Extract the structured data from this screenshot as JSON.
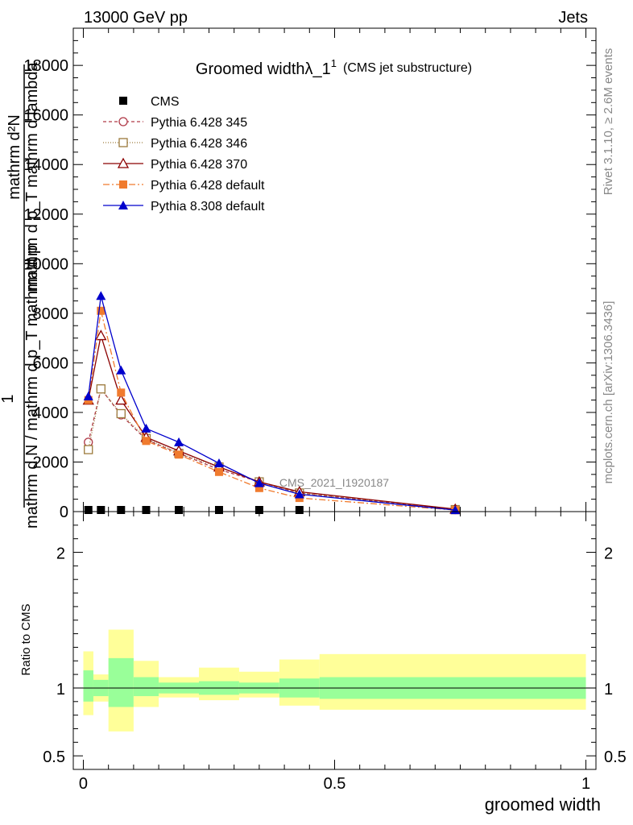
{
  "header": {
    "left": "13000 GeV pp",
    "right": "Jets"
  },
  "side_labels": {
    "rivet": "Rivet 3.1.10, ≥ 2.6M events",
    "mcplots": "mcplots.cern.ch [arXiv:1306.3436]"
  },
  "chart_data": [
    {
      "type": "line",
      "title": "Groomed widthλ_1",
      "title_sup": "1",
      "subtitle": "(CMS jet substructure)",
      "analysis_label": "CMS_2021_I1920187",
      "ylabel_numerator": "mathrm d²N",
      "ylabel_denominator": "mathrm d p_T mathrm d lambda",
      "ylabel_overlay": "mathrm d N / mathrm d p_T mathrm d p",
      "ylabel_prefix": "1",
      "xlim": [
        -0.02,
        1.02
      ],
      "ylim": [
        0,
        19500
      ],
      "yticks": [
        0,
        2000,
        4000,
        6000,
        8000,
        10000,
        12000,
        14000,
        16000,
        18000
      ],
      "ytick_labels": [
        "0",
        "2000",
        "4000",
        "6000",
        "8000",
        "10000",
        "12000",
        "14000",
        "16000",
        "18000"
      ],
      "legend_position": "top-left",
      "series": [
        {
          "name": "CMS",
          "color": "#000000",
          "marker": "square",
          "x": [
            0.01,
            0.035,
            0.075,
            0.125,
            0.19,
            0.27,
            0.35,
            0.43,
            0.74
          ],
          "values": [
            30,
            30,
            25,
            20,
            15,
            10,
            8,
            5,
            2
          ]
        },
        {
          "name": "Pythia 6.428 345",
          "color": "#b03a48",
          "marker": "circle-open",
          "dash": "4,3",
          "x": [
            0.01,
            0.035,
            0.075,
            0.125,
            0.19,
            0.27,
            0.35,
            0.43,
            0.74
          ],
          "values": [
            2800,
            4950,
            3900,
            2900,
            2350,
            1700,
            1200,
            750,
            80
          ]
        },
        {
          "name": "Pythia 6.428 346",
          "color": "#9c7a3c",
          "marker": "square-open",
          "dash": "1,2",
          "x": [
            0.01,
            0.035,
            0.075,
            0.125,
            0.19,
            0.27,
            0.35,
            0.43,
            0.74
          ],
          "values": [
            2500,
            4950,
            3950,
            2950,
            2350,
            1800,
            1200,
            750,
            80
          ]
        },
        {
          "name": "Pythia 6.428 370",
          "color": "#8b0000",
          "marker": "triangle-open",
          "dash": "",
          "x": [
            0.01,
            0.035,
            0.075,
            0.125,
            0.19,
            0.27,
            0.35,
            0.43,
            0.74
          ],
          "values": [
            4500,
            7100,
            4500,
            3000,
            2450,
            1800,
            1200,
            800,
            100
          ]
        },
        {
          "name": "Pythia 6.428 default",
          "color": "#f07b2e",
          "marker": "square",
          "dash": "8,3,2,3",
          "x": [
            0.01,
            0.035,
            0.075,
            0.125,
            0.19,
            0.27,
            0.35,
            0.43,
            0.74
          ],
          "values": [
            4500,
            8100,
            4800,
            2850,
            2300,
            1600,
            950,
            550,
            60
          ]
        },
        {
          "name": "Pythia 8.308 default",
          "color": "#0000cc",
          "marker": "triangle",
          "dash": "",
          "x": [
            0.01,
            0.035,
            0.075,
            0.125,
            0.19,
            0.27,
            0.35,
            0.43,
            0.74
          ],
          "values": [
            4650,
            8700,
            5700,
            3350,
            2800,
            1950,
            1150,
            700,
            60
          ]
        }
      ]
    },
    {
      "type": "area",
      "ylabel": "Ratio to CMS",
      "xlabel": "groomed width",
      "xlim": [
        -0.02,
        1.02
      ],
      "ylim": [
        0.4,
        2.3
      ],
      "xticks": [
        0,
        0.5,
        1
      ],
      "xtick_labels": [
        "0",
        "0.5",
        "1"
      ],
      "yticks": [
        0.5,
        1,
        2
      ],
      "ytick_labels": [
        "0.5",
        "1",
        "2"
      ],
      "bins": [
        {
          "lo": 0.0,
          "hi": 0.02,
          "stat": [
            0.9,
            1.13
          ],
          "total": [
            0.8,
            1.27
          ]
        },
        {
          "lo": 0.02,
          "hi": 0.05,
          "stat": [
            0.94,
            1.06
          ],
          "total": [
            0.9,
            1.1
          ]
        },
        {
          "lo": 0.05,
          "hi": 0.1,
          "stat": [
            0.86,
            1.22
          ],
          "total": [
            0.68,
            1.43
          ]
        },
        {
          "lo": 0.1,
          "hi": 0.15,
          "stat": [
            0.94,
            1.08
          ],
          "total": [
            0.86,
            1.2
          ]
        },
        {
          "lo": 0.15,
          "hi": 0.23,
          "stat": [
            0.96,
            1.04
          ],
          "total": [
            0.93,
            1.08
          ]
        },
        {
          "lo": 0.23,
          "hi": 0.31,
          "stat": [
            0.95,
            1.05
          ],
          "total": [
            0.91,
            1.15
          ]
        },
        {
          "lo": 0.31,
          "hi": 0.39,
          "stat": [
            0.96,
            1.04
          ],
          "total": [
            0.93,
            1.12
          ]
        },
        {
          "lo": 0.39,
          "hi": 0.47,
          "stat": [
            0.93,
            1.07
          ],
          "total": [
            0.87,
            1.21
          ]
        },
        {
          "lo": 0.47,
          "hi": 1.0,
          "stat": [
            0.92,
            1.08
          ],
          "total": [
            0.84,
            1.25
          ]
        }
      ],
      "stat_color": "#99ff99",
      "total_color": "#ffff99"
    }
  ]
}
